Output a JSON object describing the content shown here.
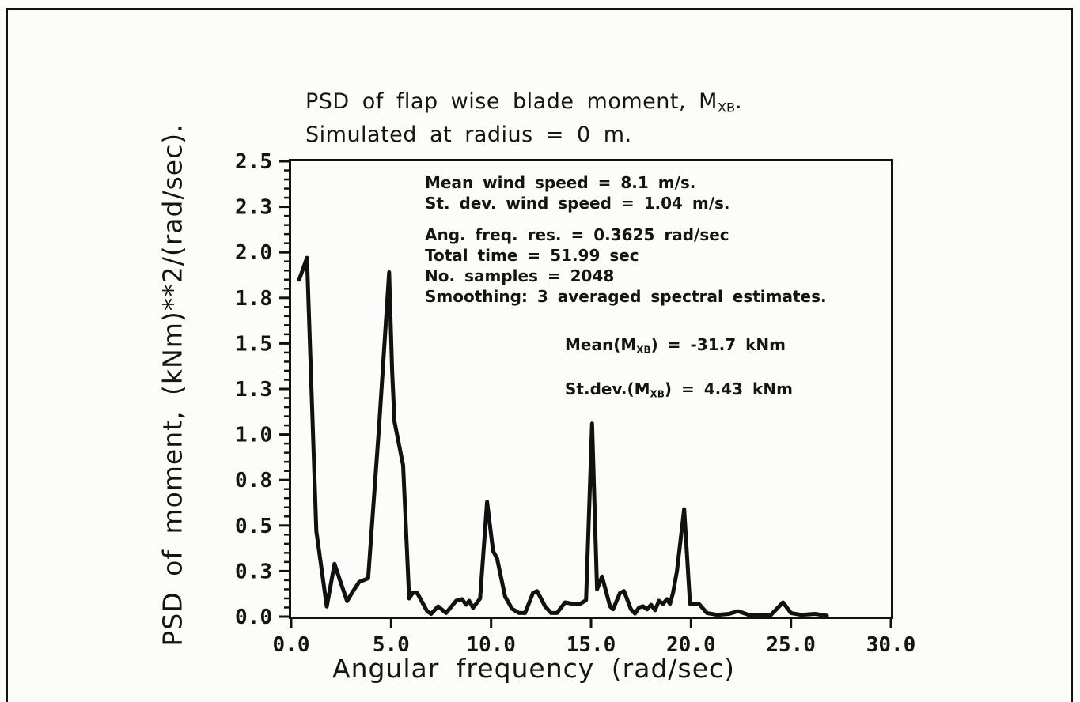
{
  "figure": {
    "title_line1_prefix": "PSD of flap wise blade moment, M",
    "title_line1_sub": "XB",
    "title_line1_suffix": ".",
    "title_line2": "Simulated at radius = 0 m."
  },
  "info_block": {
    "lines_group1": [
      "Mean wind speed = 8.1 m/s.",
      "St. dev. wind speed = 1.04 m/s."
    ],
    "lines_group2": [
      "Ang. freq. res. =  0.3625 rad/sec",
      "Total time = 51.99 sec",
      "No. samples = 2048",
      "Smoothing: 3 averaged spectral estimates."
    ]
  },
  "stats_block": {
    "mean_prefix": "Mean(M",
    "mean_sub": "XB",
    "mean_suffix": ") = -31.7 kNm",
    "stdev_prefix": "St.dev.(M",
    "stdev_sub": "XB",
    "stdev_suffix": ") = 4.43 kNm"
  },
  "chart_data": {
    "type": "line",
    "title": "PSD of flap wise blade moment, MXB. Simulated at radius = 0 m.",
    "xlabel": "Angular frequency (rad/sec)",
    "ylabel": "PSD of moment, (kNm)**2/(rad/sec).",
    "xlim": [
      0,
      30
    ],
    "ylim": [
      0,
      2.5
    ],
    "grid": false,
    "legend": "none",
    "x_tick_values": [
      0,
      5,
      10,
      15,
      20,
      25,
      30
    ],
    "x_tick_labels": [
      "0.0",
      "5.0",
      "10.0",
      "15.0",
      "20.0",
      "25.0",
      "30.0"
    ],
    "y_tick_values": [
      0,
      0.25,
      0.5,
      0.75,
      1.0,
      1.25,
      1.5,
      1.75,
      2.0,
      2.25,
      2.5
    ],
    "y_tick_labels": [
      "0.0",
      "0.3",
      "0.5",
      "0.8",
      "1.0",
      "1.3",
      "1.5",
      "1.8",
      "2.0",
      "2.3",
      "2.5"
    ],
    "y_minor_step": 0.05,
    "line_color": "#111111",
    "series": [
      {
        "name": "PSD of flap wise blade moment",
        "points": [
          [
            0.4,
            1.85
          ],
          [
            0.79,
            1.97
          ],
          [
            1.26,
            0.47
          ],
          [
            1.78,
            0.055
          ],
          [
            2.17,
            0.29
          ],
          [
            2.5,
            0.18
          ],
          [
            2.8,
            0.085
          ],
          [
            3.1,
            0.14
          ],
          [
            3.4,
            0.19
          ],
          [
            3.85,
            0.21
          ],
          [
            4.4,
            1.05
          ],
          [
            4.9,
            1.89
          ],
          [
            5.05,
            1.35
          ],
          [
            5.17,
            1.07
          ],
          [
            5.6,
            0.83
          ],
          [
            5.9,
            0.1
          ],
          [
            6.08,
            0.13
          ],
          [
            6.3,
            0.13
          ],
          [
            6.8,
            0.03
          ],
          [
            7.0,
            0.015
          ],
          [
            7.35,
            0.056
          ],
          [
            7.75,
            0.02
          ],
          [
            8.25,
            0.087
          ],
          [
            8.55,
            0.096
          ],
          [
            8.75,
            0.065
          ],
          [
            8.9,
            0.087
          ],
          [
            9.1,
            0.048
          ],
          [
            9.45,
            0.1
          ],
          [
            9.8,
            0.63
          ],
          [
            10.1,
            0.36
          ],
          [
            10.3,
            0.32
          ],
          [
            10.7,
            0.11
          ],
          [
            11.05,
            0.043
          ],
          [
            11.4,
            0.02
          ],
          [
            11.7,
            0.02
          ],
          [
            12.1,
            0.13
          ],
          [
            12.3,
            0.14
          ],
          [
            12.7,
            0.057
          ],
          [
            13.0,
            0.02
          ],
          [
            13.3,
            0.02
          ],
          [
            13.7,
            0.078
          ],
          [
            14.0,
            0.072
          ],
          [
            14.45,
            0.07
          ],
          [
            14.75,
            0.09
          ],
          [
            15.05,
            1.06
          ],
          [
            15.3,
            0.15
          ],
          [
            15.55,
            0.22
          ],
          [
            15.95,
            0.057
          ],
          [
            16.1,
            0.04
          ],
          [
            16.45,
            0.13
          ],
          [
            16.65,
            0.14
          ],
          [
            17.0,
            0.04
          ],
          [
            17.2,
            0.017
          ],
          [
            17.4,
            0.05
          ],
          [
            17.6,
            0.057
          ],
          [
            17.8,
            0.04
          ],
          [
            18.0,
            0.065
          ],
          [
            18.2,
            0.035
          ],
          [
            18.4,
            0.087
          ],
          [
            18.6,
            0.07
          ],
          [
            18.8,
            0.096
          ],
          [
            18.95,
            0.07
          ],
          [
            19.1,
            0.13
          ],
          [
            19.3,
            0.25
          ],
          [
            19.66,
            0.59
          ],
          [
            19.95,
            0.07
          ],
          [
            20.4,
            0.07
          ],
          [
            20.8,
            0.02
          ],
          [
            21.3,
            0.01
          ],
          [
            21.9,
            0.015
          ],
          [
            22.35,
            0.03
          ],
          [
            22.9,
            0.01
          ],
          [
            24.0,
            0.01
          ],
          [
            24.6,
            0.078
          ],
          [
            25.0,
            0.02
          ],
          [
            25.5,
            0.01
          ],
          [
            26.2,
            0.015
          ],
          [
            26.8,
            0.005
          ]
        ]
      }
    ]
  }
}
